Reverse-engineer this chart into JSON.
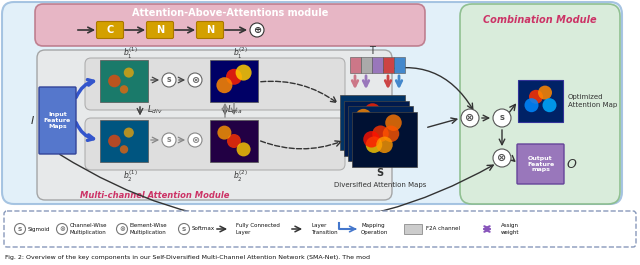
{
  "fig_width": 6.4,
  "fig_height": 2.65,
  "dpi": 100,
  "bg_color": "#ffffff",
  "main_bg": "#ddeef8",
  "pink_bg": "#e8b0c0",
  "green_bg": "#d8ecd8",
  "gray_module_bg": "#e8e8e8",
  "module_labels": {
    "top": "Attention-Above-Attentions module",
    "left": "Multi-channel Attention Module",
    "right": "Combination Module"
  },
  "top_chain": [
    "C",
    "N",
    "N"
  ],
  "top_chain_color": "#d4a000",
  "input_box_label": "Input\nFeature\nMaps",
  "input_box_color": "#5577cc",
  "output_label": "O",
  "output_box_label": "Output\nFeature\nmaps",
  "output_box_color": "#9977bb",
  "optimized_label": "Optimized\nAttention Map",
  "diversified_label": "Diversified Attention Maps",
  "T_label": "T",
  "S_label": "S",
  "caption": "Fig. 2: Overview of the key components in our Self-Diversified Multi-Channel Attention Network (SMA-Net). The mod"
}
